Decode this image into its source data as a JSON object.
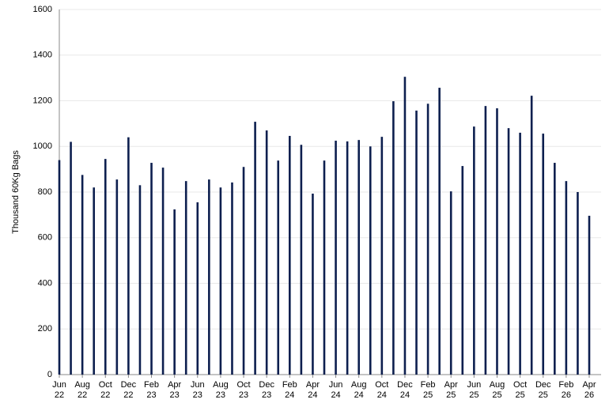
{
  "chart_data": {
    "type": "bar",
    "y_label": "Thousand 60Kg Bags",
    "categories": [
      "Jun\n22",
      null,
      "Aug\n22",
      null,
      "Oct\n22",
      null,
      "Dec\n22",
      null,
      "Feb\n23",
      null,
      "Apr\n23",
      null,
      "Jun\n23",
      null,
      "Aug\n23",
      null,
      "Oct\n23",
      null,
      "Dec\n23",
      null,
      "Feb\n24",
      null,
      "Apr\n24",
      null,
      "Jun\n24",
      null,
      "Aug\n24",
      null,
      "Oct\n24",
      null,
      "Dec\n24",
      null,
      "Feb\n25",
      null,
      "Apr\n25",
      null,
      "Jun\n25",
      null,
      "Aug\n25",
      null,
      "Oct\n25",
      null,
      "Dec\n25",
      null,
      "Feb\n26",
      null,
      "Apr\n26"
    ],
    "values": [
      940,
      1020,
      875,
      820,
      945,
      855,
      1040,
      830,
      928,
      907,
      724,
      848,
      755,
      855,
      820,
      842,
      910,
      1108,
      1070,
      938,
      1046,
      1007,
      793,
      938,
      1025,
      1022,
      1028,
      1000,
      1042,
      1198,
      1305,
      1157,
      1187,
      1257,
      803,
      914,
      1087,
      1177,
      1167,
      1080,
      1060,
      1222,
      1056,
      928,
      848,
      800,
      696
    ],
    "color": "#0d1f4f",
    "ylim": [
      0,
      1600
    ],
    "yticks": [
      0,
      200,
      400,
      600,
      800,
      1000,
      1200,
      1400,
      1600
    ],
    "grid": true
  }
}
